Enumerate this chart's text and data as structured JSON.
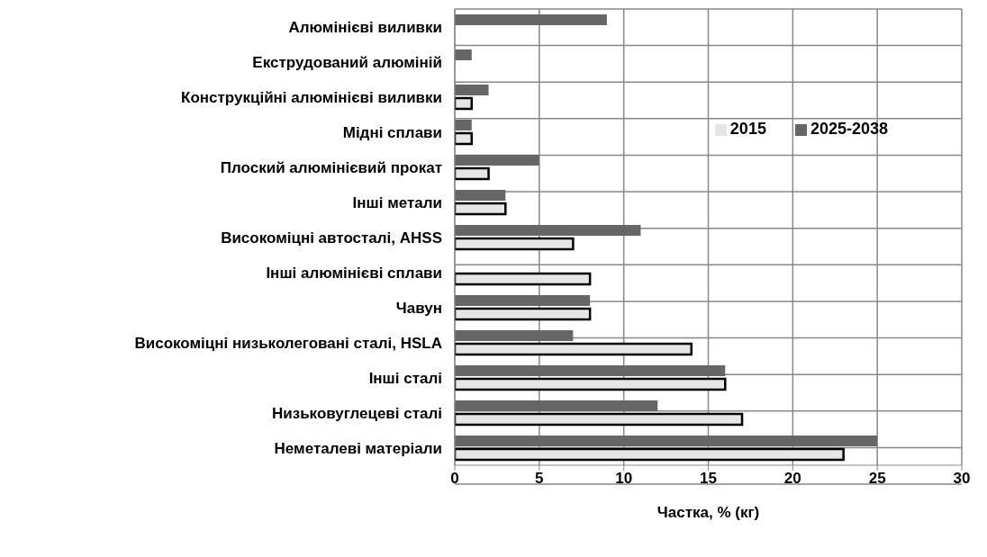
{
  "chart_data": {
    "type": "bar",
    "orientation": "horizontal",
    "xlabel": "Частка, % (кг)",
    "categories": [
      "Алюмінієві виливки",
      "Екструдований алюміній",
      "Конструкційні  алюмінієві виливки",
      "Мідні сплави",
      "Плоский алюмінієвий прокат",
      "Інші метали",
      "Високоміцні автосталі, AHSS",
      "Інші алюмінієві сплави",
      "Чавун",
      "Високоміцні низьколеговані сталі, HSLA",
      "Інші сталі",
      "Низьковуглецеві сталі",
      "Неметалеві матеріали"
    ],
    "series": [
      {
        "name": "2025-2038",
        "color": "#666666",
        "values": [
          9,
          1,
          2,
          1,
          5,
          3,
          11,
          null,
          8,
          7,
          16,
          12,
          25
        ]
      },
      {
        "name": "2015",
        "color": "#e6e6e6",
        "values": [
          null,
          null,
          1,
          1,
          2,
          3,
          7,
          8,
          8,
          14,
          16,
          17,
          23
        ]
      }
    ],
    "xlim": [
      0,
      30
    ],
    "xticks": [
      0,
      5,
      10,
      15,
      20,
      25,
      30
    ],
    "grid": true,
    "legend": "top right"
  }
}
